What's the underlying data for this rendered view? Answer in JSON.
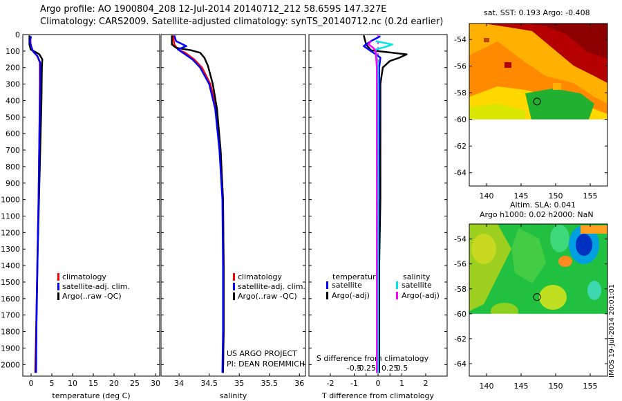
{
  "titles": {
    "line1": "Argo profile: AO 1900804_208 12-Jul-2014 20140712_212 58.659S 147.327E",
    "line2": "Climatology: CARS2009. Satellite-adjusted climatology: synTS_20140712.nc (0.2d earlier)",
    "sst": "sat. SST: 0.193 Argo: -0.408",
    "sla1": "Altim. SLA: 0.041",
    "sla2": "Argo h1000: 0.02 h2000: NaN"
  },
  "project": {
    "line1": "US ARGO PROJECT",
    "line2": "PI: DEAN ROEMMICH"
  },
  "stamp": "IMOS 19-Jul-2014 20:01:01",
  "colors": {
    "climatology": "#ff0000",
    "satellite": "#0000ff",
    "argo": "#000000",
    "sal_satellite": "#00e5e5",
    "sal_argo": "#ff00ff"
  },
  "chart_data": [
    {
      "type": "line",
      "name": "temperature",
      "xlabel": "temperature (deg C)",
      "xlim": [
        -2,
        31
      ],
      "xticks": [
        0,
        5,
        10,
        15,
        20,
        25,
        30
      ],
      "ylim": [
        2070,
        0
      ],
      "yticks": [
        0,
        100,
        200,
        300,
        400,
        500,
        600,
        700,
        800,
        900,
        1000,
        1100,
        1200,
        1300,
        1400,
        1500,
        1600,
        1700,
        1800,
        1900,
        2000
      ],
      "legend": [
        "climatology",
        "satellite-adj. clim.",
        "Argo(..raw -QC)"
      ],
      "series": [
        {
          "name": "climatology",
          "color": "#ff0000",
          "points": [
            [
              -0.2,
              10
            ],
            [
              -0.1,
              60
            ],
            [
              0.4,
              100
            ],
            [
              1.5,
              130
            ],
            [
              2.1,
              170
            ],
            [
              2.1,
              300
            ],
            [
              2.0,
              600
            ],
            [
              1.8,
              1000
            ],
            [
              1.5,
              1400
            ],
            [
              1.2,
              1800
            ],
            [
              1.0,
              2050
            ]
          ]
        },
        {
          "name": "Argo(..raw -QC)",
          "color": "#000000",
          "points": [
            [
              -0.4,
              5
            ],
            [
              -0.4,
              60
            ],
            [
              -0.1,
              90
            ],
            [
              1.0,
              105
            ],
            [
              2.0,
              120
            ],
            [
              2.7,
              150
            ],
            [
              2.6,
              200
            ],
            [
              2.5,
              400
            ],
            [
              2.2,
              700
            ],
            [
              1.9,
              1000
            ],
            [
              1.6,
              1300
            ],
            [
              1.4,
              1600
            ],
            [
              1.2,
              1900
            ],
            [
              1.1,
              2050
            ]
          ]
        },
        {
          "name": "satellite-adj. clim.",
          "color": "#0000ff",
          "points": [
            [
              0.0,
              10
            ],
            [
              -0.3,
              40
            ],
            [
              0.1,
              80
            ],
            [
              0.6,
              105
            ],
            [
              1.5,
              130
            ],
            [
              2.2,
              170
            ],
            [
              2.2,
              300
            ],
            [
              2.0,
              600
            ],
            [
              1.8,
              1000
            ],
            [
              1.5,
              1400
            ],
            [
              1.3,
              1700
            ],
            [
              1.2,
              2050
            ]
          ]
        }
      ]
    },
    {
      "type": "line",
      "name": "salinity",
      "xlabel": "salinity",
      "xlim": [
        33.7,
        36.1
      ],
      "xticks": [
        34,
        34.5,
        35,
        35.5,
        36
      ],
      "xticklabels": [
        "34",
        "34.5",
        "35",
        "35.5",
        "36"
      ],
      "ylim": [
        2070,
        0
      ],
      "legend": [
        "climatology",
        "satellite-adj. clim.",
        "Argo(..raw -QC)"
      ],
      "series": [
        {
          "name": "climatology",
          "color": "#ff0000",
          "points": [
            [
              33.9,
              5
            ],
            [
              33.92,
              60
            ],
            [
              33.98,
              90
            ],
            [
              34.1,
              110
            ],
            [
              34.25,
              150
            ],
            [
              34.38,
              200
            ],
            [
              34.52,
              300
            ],
            [
              34.62,
              450
            ],
            [
              34.69,
              700
            ],
            [
              34.73,
              1000
            ],
            [
              34.74,
              1400
            ],
            [
              34.74,
              1800
            ],
            [
              34.73,
              2050
            ]
          ]
        },
        {
          "name": "Argo(..raw -QC)",
          "color": "#000000",
          "points": [
            [
              33.88,
              5
            ],
            [
              33.88,
              60
            ],
            [
              33.95,
              80
            ],
            [
              34.2,
              95
            ],
            [
              34.35,
              110
            ],
            [
              34.42,
              140
            ],
            [
              34.48,
              190
            ],
            [
              34.56,
              300
            ],
            [
              34.63,
              450
            ],
            [
              34.69,
              700
            ],
            [
              34.73,
              1000
            ],
            [
              34.74,
              1400
            ],
            [
              34.74,
              1800
            ],
            [
              34.73,
              2050
            ]
          ]
        },
        {
          "name": "satellite-adj. clim.",
          "color": "#0000ff",
          "points": [
            [
              33.92,
              5
            ],
            [
              33.95,
              40
            ],
            [
              34.12,
              70
            ],
            [
              33.98,
              90
            ],
            [
              34.08,
              115
            ],
            [
              34.22,
              150
            ],
            [
              34.35,
              200
            ],
            [
              34.5,
              300
            ],
            [
              34.6,
              450
            ],
            [
              34.67,
              700
            ],
            [
              34.72,
              1000
            ],
            [
              34.73,
              1400
            ],
            [
              34.73,
              1800
            ],
            [
              34.72,
              2050
            ]
          ]
        }
      ]
    },
    {
      "type": "line",
      "name": "differences",
      "xlabel": "T difference from climatology",
      "top_label": "S difference from climatology",
      "xlim": [
        -2.9,
        2.9
      ],
      "xticks": [
        -2,
        -1,
        0,
        1,
        2
      ],
      "s_ticks": [
        -0.5,
        -0.25,
        0,
        0.25,
        0.5
      ],
      "s_ticklabels": [
        "-0.5",
        "-0.25",
        "0",
        "0.25",
        "0.5"
      ],
      "ylim": [
        2070,
        0
      ],
      "legend_temperature": {
        "title": "temperature",
        "items": [
          "satellite",
          "Argo(-adj)"
        ]
      },
      "legend_salinity": {
        "title": "salinity",
        "items": [
          "satellite",
          "Argo(-adj)"
        ]
      },
      "series": [
        {
          "name": "Argo(-adj) T",
          "color": "#000000",
          "points": [
            [
              -0.6,
              5
            ],
            [
              -0.5,
              60
            ],
            [
              -0.3,
              95
            ],
            [
              1.2,
              120
            ],
            [
              0.9,
              140
            ],
            [
              0.5,
              160
            ],
            [
              0.2,
              200
            ],
            [
              0.1,
              300
            ],
            [
              0.1,
              600
            ],
            [
              0.1,
              1000
            ],
            [
              0.05,
              1400
            ],
            [
              0.05,
              1800
            ],
            [
              0.05,
              2050
            ]
          ]
        },
        {
          "name": "satellite T",
          "color": "#0000ff",
          "points": [
            [
              0.1,
              10
            ],
            [
              -0.3,
              40
            ],
            [
              -0.6,
              70
            ],
            [
              -0.3,
              100
            ],
            [
              0.1,
              140
            ],
            [
              0.05,
              200
            ],
            [
              0.05,
              500
            ],
            [
              0.02,
              1000
            ],
            [
              0.01,
              1500
            ],
            [
              0.01,
              2050
            ]
          ]
        },
        {
          "name": "satellite S",
          "color": "#00e5e5",
          "points": [
            [
              -0.1,
              40
            ],
            [
              0.6,
              60
            ],
            [
              0.3,
              75
            ],
            [
              -0.1,
              90
            ],
            [
              0.0,
              200
            ],
            [
              0.0,
              500
            ],
            [
              0.0,
              1000
            ],
            [
              0.0,
              1500
            ],
            [
              0.0,
              2050
            ]
          ]
        },
        {
          "name": "Argo(-adj) S",
          "color": "#ff00ff",
          "points": [
            [
              -0.3,
              40
            ],
            [
              -0.4,
              60
            ],
            [
              -0.2,
              80
            ],
            [
              -0.1,
              100
            ],
            [
              -0.05,
              200
            ],
            [
              -0.05,
              500
            ],
            [
              -0.05,
              1000
            ],
            [
              -0.05,
              1500
            ],
            [
              -0.05,
              2050
            ]
          ]
        }
      ]
    },
    {
      "type": "heatmap",
      "name": "sst-map",
      "xticks": [
        140,
        145,
        150,
        155
      ],
      "yticks": [
        -54,
        -56,
        -58,
        -60,
        -62,
        -64
      ],
      "xlim": [
        137.5,
        157.5
      ],
      "ylim": [
        -65,
        -52.8
      ],
      "data_south_limit": -60,
      "marker": [
        147.3,
        -58.66
      ]
    },
    {
      "type": "heatmap",
      "name": "sla-map",
      "xticks": [
        140,
        145,
        150,
        155
      ],
      "yticks": [
        -54,
        -56,
        -58,
        -60,
        -62,
        -64
      ],
      "xlim": [
        137.5,
        157.5
      ],
      "ylim": [
        -65,
        -52.8
      ],
      "data_south_limit": -60,
      "marker": [
        147.3,
        -58.66
      ]
    }
  ]
}
